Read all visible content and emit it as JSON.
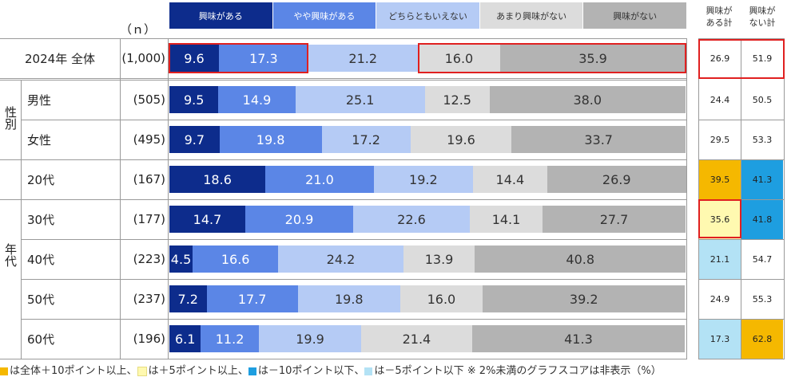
{
  "legend": [
    {
      "label": "興味がある",
      "color": "#0d2c8c",
      "text": "#ffffff"
    },
    {
      "label": "やや興味がある",
      "color": "#5b86e6",
      "text": "#ffffff"
    },
    {
      "label": "どちらともいえない",
      "color": "#b5cbf5",
      "text": "#333333"
    },
    {
      "label": "あまり興味がない",
      "color": "#dcdcdc",
      "text": "#333333"
    },
    {
      "label": "興味がない",
      "color": "#b3b3b3",
      "text": "#333333"
    }
  ],
  "n_header": "（ｎ）",
  "sum_headers": [
    "興味が\nある計",
    "興味が\nない計"
  ],
  "group_labels": {
    "gender": "性別",
    "age": "年代"
  },
  "chart_data": {
    "type": "bar",
    "stacked": true,
    "orientation": "horizontal",
    "unit": "%",
    "categories": [
      "2024年 全体",
      "男性",
      "女性",
      "20代",
      "30代",
      "40代",
      "50代",
      "60代"
    ],
    "n": [
      "(1,000)",
      "(505)",
      "(495)",
      "(167)",
      "(177)",
      "(223)",
      "(237)",
      "(196)"
    ],
    "series": [
      {
        "name": "興味がある",
        "values": [
          9.6,
          9.5,
          9.7,
          18.6,
          14.7,
          4.5,
          7.2,
          6.1
        ]
      },
      {
        "name": "やや興味がある",
        "values": [
          17.3,
          14.9,
          19.8,
          21.0,
          20.9,
          16.6,
          17.7,
          11.2
        ]
      },
      {
        "name": "どちらともいえない",
        "values": [
          21.2,
          25.1,
          17.2,
          19.2,
          22.6,
          24.2,
          19.8,
          19.9
        ]
      },
      {
        "name": "あまり興味がない",
        "values": [
          16.0,
          12.5,
          19.6,
          14.4,
          14.1,
          13.9,
          16.0,
          21.4
        ]
      },
      {
        "name": "興味がない",
        "values": [
          35.9,
          38.0,
          33.7,
          26.9,
          27.7,
          40.8,
          39.2,
          41.3
        ]
      }
    ],
    "sum_interested": [
      "26.9",
      "24.4",
      "29.5",
      "39.5",
      "35.6",
      "21.1",
      "24.9",
      "17.3"
    ],
    "sum_not_interested": [
      "51.9",
      "50.5",
      "53.3",
      "41.3",
      "41.8",
      "54.7",
      "55.3",
      "62.8"
    ],
    "sum_highlight_interested": [
      "none",
      "none",
      "none",
      "plus10",
      "plus5",
      "minus5",
      "none",
      "minus5"
    ],
    "sum_highlight_not_interested": [
      "none",
      "none",
      "none",
      "minus10",
      "minus10",
      "none",
      "none",
      "plus10"
    ]
  },
  "highlight_colors": {
    "plus10": "#f5b800",
    "plus5": "#fff9b0",
    "minus10": "#1e9ee0",
    "minus5": "#b3e2f5",
    "none": "#ffffff",
    "frame": "#e02020"
  },
  "footnote": {
    "parts": [
      {
        "marker": "plus10",
        "text": "は全体＋10ポイント以上、"
      },
      {
        "marker": "plus5",
        "text": "は＋5ポイント以上、"
      },
      {
        "marker": "minus10",
        "text": "は－10ポイント以下、"
      },
      {
        "marker": "minus5",
        "text": "は－5ポイント以下 ※ 2%未満のグラフスコアは非表示（%）"
      }
    ]
  }
}
